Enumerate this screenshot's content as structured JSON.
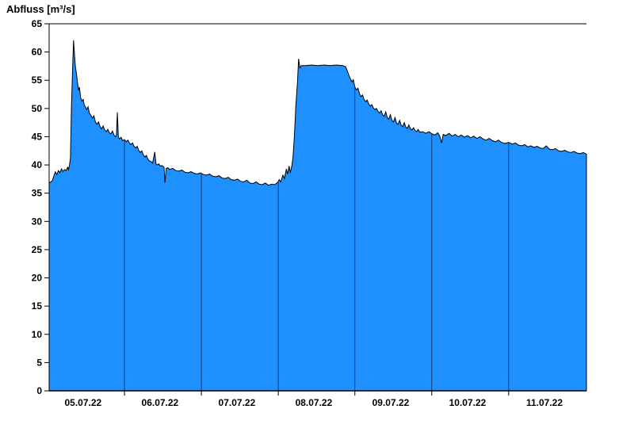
{
  "chart_data": {
    "type": "area",
    "title": "Abfluss [m³/s]",
    "ylabel": "Abfluss [m³/s]",
    "xlabel": "",
    "ylim": [
      0,
      65
    ],
    "y_tick_step": 5,
    "x_range_hours": [
      0,
      174
    ],
    "x_start_label": "05.07.22",
    "grid": "vertical-day-lines-clipped-to-area",
    "legend": "none",
    "colors": {
      "fill": "#1E90FF",
      "outline": "#000000",
      "grid": "#1b3a6b",
      "axis": "#000000",
      "text": "#000000",
      "background": "#FFFFFF"
    },
    "x_tick_labels": [
      {
        "label": "05.07.22",
        "t": 11.0
      },
      {
        "label": "06.07.22",
        "t": 35.9
      },
      {
        "label": "07.07.22",
        "t": 60.8
      },
      {
        "label": "08.07.22",
        "t": 85.7
      },
      {
        "label": "09.07.22",
        "t": 110.6
      },
      {
        "label": "10.07.22",
        "t": 135.5
      },
      {
        "label": "11.07.22",
        "t": 160.4
      }
    ],
    "day_boundaries_hours": [
      24.4,
      49.3,
      74.2,
      99.0,
      123.9,
      148.8
    ],
    "series": [
      {
        "name": "Abfluss",
        "unit": "m³/s",
        "points_hours_value": [
          [
            0,
            36.8
          ],
          [
            1,
            37.2
          ],
          [
            2,
            38.8
          ],
          [
            2.5,
            38.3
          ],
          [
            3,
            39.0
          ],
          [
            3.5,
            38.6
          ],
          [
            4,
            39.3
          ],
          [
            4.5,
            38.8
          ],
          [
            5,
            39.2
          ],
          [
            5.5,
            39.0
          ],
          [
            6,
            39.6
          ],
          [
            6.3,
            39.2
          ],
          [
            6.6,
            40.0
          ],
          [
            6.9,
            41.2
          ],
          [
            7.2,
            50.0
          ],
          [
            7.6,
            57.0
          ],
          [
            7.9,
            62.1
          ],
          [
            8.2,
            59.5
          ],
          [
            8.5,
            57.5
          ],
          [
            8.8,
            56.3
          ],
          [
            9.2,
            54.6
          ],
          [
            9.5,
            53.2
          ],
          [
            9.8,
            53.8
          ],
          [
            10.2,
            52.0
          ],
          [
            10.6,
            51.3
          ],
          [
            11.0,
            51.6
          ],
          [
            11.4,
            50.6
          ],
          [
            11.8,
            50.2
          ],
          [
            12.2,
            49.8
          ],
          [
            12.6,
            50.3
          ],
          [
            13.0,
            49.2
          ],
          [
            13.5,
            48.8
          ],
          [
            14.0,
            48.3
          ],
          [
            14.5,
            48.7
          ],
          [
            15.0,
            47.6
          ],
          [
            15.5,
            47.2
          ],
          [
            16.0,
            47.6
          ],
          [
            16.5,
            46.8
          ],
          [
            17.0,
            46.4
          ],
          [
            17.5,
            46.9
          ],
          [
            18.0,
            46.2
          ],
          [
            18.5,
            45.9
          ],
          [
            19.0,
            46.3
          ],
          [
            19.5,
            45.7
          ],
          [
            20.0,
            45.5
          ],
          [
            20.5,
            46.0
          ],
          [
            21.0,
            45.3
          ],
          [
            21.5,
            45.0
          ],
          [
            21.8,
            45.2
          ],
          [
            22.1,
            49.3
          ],
          [
            22.4,
            45.0
          ],
          [
            22.8,
            44.6
          ],
          [
            23.3,
            44.9
          ],
          [
            23.8,
            44.3
          ],
          [
            24.4,
            44.5
          ],
          [
            25.0,
            44.1
          ],
          [
            25.5,
            44.4
          ],
          [
            26.0,
            43.9
          ],
          [
            26.5,
            43.6
          ],
          [
            27.0,
            43.9
          ],
          [
            27.5,
            43.3
          ],
          [
            28.0,
            43.0
          ],
          [
            28.5,
            43.3
          ],
          [
            29.0,
            42.6
          ],
          [
            29.5,
            42.2
          ],
          [
            30.0,
            42.5
          ],
          [
            30.5,
            41.8
          ],
          [
            31.0,
            41.4
          ],
          [
            31.5,
            41.7
          ],
          [
            32.0,
            41.0
          ],
          [
            32.5,
            40.7
          ],
          [
            33.0,
            40.6
          ],
          [
            33.5,
            40.3
          ],
          [
            34.2,
            42.3
          ],
          [
            34.6,
            40.2
          ],
          [
            35.0,
            40.0
          ],
          [
            35.5,
            40.2
          ],
          [
            36.0,
            39.8
          ],
          [
            36.5,
            39.9
          ],
          [
            37.2,
            39.6
          ],
          [
            37.5,
            36.9
          ],
          [
            37.9,
            39.4
          ],
          [
            38.5,
            39.5
          ],
          [
            39.0,
            39.2
          ],
          [
            40.0,
            39.4
          ],
          [
            41.0,
            39.0
          ],
          [
            42.0,
            38.9
          ],
          [
            43.0,
            39.1
          ],
          [
            44.0,
            38.7
          ],
          [
            45.0,
            38.6
          ],
          [
            46.0,
            38.8
          ],
          [
            47.0,
            38.5
          ],
          [
            48.0,
            38.4
          ],
          [
            49.0,
            38.6
          ],
          [
            50.0,
            38.3
          ],
          [
            51.0,
            38.2
          ],
          [
            52.0,
            38.4
          ],
          [
            53.0,
            38.0
          ],
          [
            54.0,
            37.9
          ],
          [
            55.0,
            38.1
          ],
          [
            56.0,
            37.7
          ],
          [
            57.0,
            37.6
          ],
          [
            58.0,
            37.8
          ],
          [
            59.0,
            37.4
          ],
          [
            60.0,
            37.3
          ],
          [
            61.0,
            37.5
          ],
          [
            62.0,
            37.1
          ],
          [
            63.0,
            37.0
          ],
          [
            64.0,
            37.3
          ],
          [
            65.0,
            36.8
          ],
          [
            66.0,
            36.7
          ],
          [
            67.0,
            37.0
          ],
          [
            68.0,
            36.6
          ],
          [
            69.0,
            36.5
          ],
          [
            70.0,
            36.8
          ],
          [
            71.0,
            36.4
          ],
          [
            72.0,
            36.6
          ],
          [
            73.0,
            36.5
          ],
          [
            74.0,
            36.9
          ],
          [
            74.5,
            37.4
          ],
          [
            75.0,
            37.0
          ],
          [
            75.7,
            38.2
          ],
          [
            76.2,
            37.6
          ],
          [
            76.8,
            39.3
          ],
          [
            77.2,
            38.4
          ],
          [
            77.7,
            39.8
          ],
          [
            78.1,
            38.6
          ],
          [
            78.6,
            39.9
          ],
          [
            79.0,
            41.5
          ],
          [
            79.4,
            45.0
          ],
          [
            79.9,
            50.5
          ],
          [
            80.4,
            54.5
          ],
          [
            80.8,
            58.8
          ],
          [
            81.2,
            57.2
          ],
          [
            81.7,
            57.6
          ],
          [
            83,
            57.6
          ],
          [
            85,
            57.7
          ],
          [
            87,
            57.6
          ],
          [
            89,
            57.7
          ],
          [
            91,
            57.6
          ],
          [
            93,
            57.7
          ],
          [
            95,
            57.6
          ],
          [
            96,
            57.4
          ],
          [
            96.6,
            56.6
          ],
          [
            97.1,
            55.8
          ],
          [
            97.6,
            55.2
          ],
          [
            98.1,
            54.7
          ],
          [
            98.5,
            55.1
          ],
          [
            99.0,
            53.8
          ],
          [
            99.5,
            53.3
          ],
          [
            100,
            53.6
          ],
          [
            100.5,
            52.6
          ],
          [
            101,
            52.1
          ],
          [
            101.5,
            52.4
          ],
          [
            102,
            51.6
          ],
          [
            102.5,
            51.2
          ],
          [
            103,
            51.5
          ],
          [
            103.5,
            50.8
          ],
          [
            104,
            50.4
          ],
          [
            104.5,
            50.7
          ],
          [
            105,
            50.1
          ],
          [
            105.5,
            49.8
          ],
          [
            106,
            50.0
          ],
          [
            106.5,
            49.5
          ],
          [
            107,
            49.2
          ],
          [
            107.5,
            49.6
          ],
          [
            108,
            48.9
          ],
          [
            108.5,
            48.6
          ],
          [
            109,
            49.4
          ],
          [
            109.5,
            48.4
          ],
          [
            110,
            48.1
          ],
          [
            110.5,
            48.9
          ],
          [
            111,
            47.9
          ],
          [
            111.5,
            47.6
          ],
          [
            112,
            48.4
          ],
          [
            112.5,
            47.4
          ],
          [
            113,
            47.2
          ],
          [
            113.5,
            47.9
          ],
          [
            114,
            47.0
          ],
          [
            114.5,
            46.8
          ],
          [
            115,
            47.5
          ],
          [
            115.5,
            46.7
          ],
          [
            116,
            46.5
          ],
          [
            116.5,
            47.1
          ],
          [
            117,
            46.4
          ],
          [
            117.5,
            46.2
          ],
          [
            118,
            46.6
          ],
          [
            118.5,
            46.1
          ],
          [
            119,
            45.9
          ],
          [
            119.5,
            46.3
          ],
          [
            120,
            45.8
          ],
          [
            121,
            45.9
          ],
          [
            122,
            45.6
          ],
          [
            123,
            45.9
          ],
          [
            124,
            45.5
          ],
          [
            125,
            45.3
          ],
          [
            125.8,
            45.7
          ],
          [
            126.5,
            45.1
          ],
          [
            127.1,
            43.9
          ],
          [
            127.6,
            45.4
          ],
          [
            128.5,
            45.2
          ],
          [
            129.5,
            45.6
          ],
          [
            130.5,
            45.1
          ],
          [
            131.5,
            45.4
          ],
          [
            132.5,
            45.0
          ],
          [
            133.5,
            45.3
          ],
          [
            134.5,
            44.9
          ],
          [
            135.5,
            45.2
          ],
          [
            136.5,
            44.8
          ],
          [
            137.5,
            45.1
          ],
          [
            138.5,
            44.7
          ],
          [
            139.5,
            45.0
          ],
          [
            140.5,
            44.6
          ],
          [
            141.5,
            44.4
          ],
          [
            142.5,
            44.7
          ],
          [
            143.5,
            44.3
          ],
          [
            144.5,
            44.1
          ],
          [
            145.5,
            44.4
          ],
          [
            146.5,
            44.0
          ],
          [
            147.5,
            43.8
          ],
          [
            148.8,
            44.0
          ],
          [
            150,
            43.7
          ],
          [
            151,
            43.9
          ],
          [
            152,
            43.5
          ],
          [
            153,
            43.4
          ],
          [
            154,
            43.6
          ],
          [
            155,
            43.2
          ],
          [
            156,
            43.4
          ],
          [
            157,
            43.1
          ],
          [
            158,
            43.3
          ],
          [
            159,
            43.0
          ],
          [
            160,
            42.9
          ],
          [
            161,
            43.4
          ],
          [
            162,
            42.8
          ],
          [
            163,
            42.7
          ],
          [
            164,
            42.9
          ],
          [
            165,
            42.5
          ],
          [
            166,
            42.4
          ],
          [
            167,
            42.6
          ],
          [
            168,
            42.3
          ],
          [
            169,
            42.2
          ],
          [
            170,
            42.4
          ],
          [
            171,
            42.1
          ],
          [
            172,
            42.0
          ],
          [
            173,
            42.2
          ],
          [
            174,
            41.9
          ]
        ]
      }
    ]
  }
}
